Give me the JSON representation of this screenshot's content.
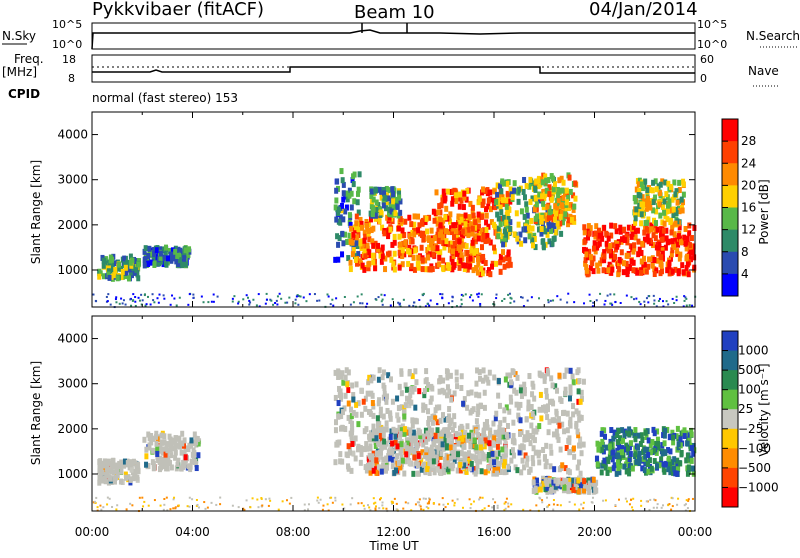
{
  "header": {
    "station": "Pykkvibaer (fitACF)",
    "beam": "Beam 10",
    "date": "04/Jan/2014"
  },
  "strip_panels": {
    "nsky_label": "N.Sky",
    "nsky_ticks": [
      "10^5",
      "10^0"
    ],
    "nsearch_label": "N.Search",
    "nsearch_ticks": [
      "10^5",
      "10^0"
    ],
    "freq_label": "Freq.",
    "freq_unit": "[MHz]",
    "freq_ticks": [
      "18",
      "8"
    ],
    "nave_label": "Nave",
    "nave_ticks": [
      "60",
      "0"
    ],
    "cpid_label": "CPID",
    "cpid_text": "normal (fast stereo) 153"
  },
  "colors": {
    "power_scale": [
      "#0000ff",
      "#2a4bb0",
      "#2e8a68",
      "#58b848",
      "#ffd000",
      "#ff8a00",
      "#ff4000",
      "#ff0000"
    ],
    "velocity_scale": [
      "#2040c0",
      "#206a8a",
      "#2a8a50",
      "#60c040",
      "#c8c8c0",
      "#ffc800",
      "#ff8c00",
      "#ff4400",
      "#ff0000"
    ],
    "ground_scatter": "#c0c0b8"
  },
  "chart_data": [
    {
      "type": "heatmap",
      "title": "",
      "xlabel": "Time UT",
      "ylabel": "Slant Range [km]",
      "x_ticks": [
        "00:00",
        "04:00",
        "08:00",
        "12:00",
        "16:00",
        "20:00",
        "00:00"
      ],
      "y_ticks": [
        "1000",
        "2000",
        "3000",
        "4000"
      ],
      "xlim_hours": [
        0,
        24
      ],
      "ylim_km": [
        180,
        4500
      ],
      "colorbar": {
        "label": "Power [dB]",
        "ticks": [
          "4",
          "8",
          "12",
          "16",
          "20",
          "24",
          "28"
        ]
      },
      "scatter_regions": [
        {
          "t0": 0.2,
          "t1": 1.8,
          "r0": 800,
          "r1": 1300,
          "level": 0.35
        },
        {
          "t0": 2.0,
          "t1": 3.8,
          "r0": 1100,
          "r1": 1500,
          "level": 0.25
        },
        {
          "t0": 9.6,
          "t1": 10.6,
          "r0": 1200,
          "r1": 3200,
          "level": 0.3
        },
        {
          "t0": 10.2,
          "t1": 15.5,
          "r0": 1000,
          "r1": 2200,
          "level": 0.75
        },
        {
          "t0": 11.0,
          "t1": 12.2,
          "r0": 2200,
          "r1": 2800,
          "level": 0.35
        },
        {
          "t0": 13.5,
          "t1": 16.6,
          "r0": 900,
          "r1": 2800,
          "level": 0.8
        },
        {
          "t0": 16.0,
          "t1": 18.6,
          "r0": 1500,
          "r1": 3000,
          "level": 0.4
        },
        {
          "t0": 17.5,
          "t1": 19.2,
          "r0": 2000,
          "r1": 3100,
          "level": 0.6
        },
        {
          "t0": 19.5,
          "t1": 23.9,
          "r0": 900,
          "r1": 2000,
          "level": 0.85
        },
        {
          "t0": 21.5,
          "t1": 23.5,
          "r0": 2000,
          "r1": 3000,
          "level": 0.5
        }
      ]
    },
    {
      "type": "heatmap",
      "title": "",
      "xlabel": "Time UT",
      "ylabel": "Slant Range [km]",
      "x_ticks": [
        "00:00",
        "04:00",
        "08:00",
        "12:00",
        "16:00",
        "20:00",
        "00:00"
      ],
      "y_ticks": [
        "1000",
        "2000",
        "3000",
        "4000"
      ],
      "xlim_hours": [
        0,
        24
      ],
      "ylim_km": [
        180,
        4500
      ],
      "colorbar": {
        "label": "Velocity [m s⁻¹]",
        "ticks": [
          "1000",
          "500",
          "100",
          "25",
          "−25",
          "−100",
          "−500",
          "−1000"
        ]
      },
      "scatter_regions": [
        {
          "t0": 0.2,
          "t1": 1.8,
          "r0": 800,
          "r1": 1300,
          "kind": "ground"
        },
        {
          "t0": 2.0,
          "t1": 4.2,
          "r0": 1100,
          "r1": 1900,
          "kind": "ground"
        },
        {
          "t0": 9.6,
          "t1": 19.5,
          "r0": 1000,
          "r1": 3300,
          "kind": "ground"
        },
        {
          "t0": 11.0,
          "t1": 16.5,
          "r0": 1000,
          "r1": 2000,
          "kind": "mixed"
        },
        {
          "t0": 20.0,
          "t1": 23.9,
          "r0": 1000,
          "r1": 2000,
          "kind": "positive"
        },
        {
          "t0": 17.5,
          "t1": 20.0,
          "r0": 600,
          "r1": 900,
          "kind": "mixed"
        }
      ]
    }
  ]
}
